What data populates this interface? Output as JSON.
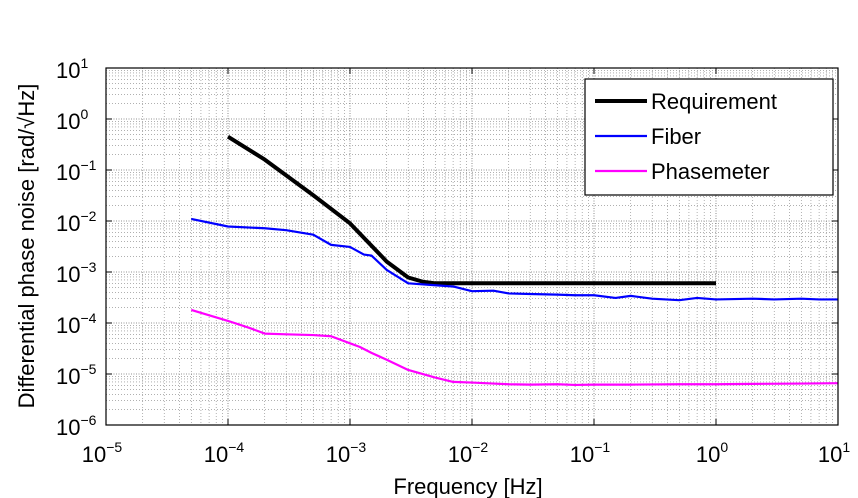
{
  "chart_data": {
    "type": "line",
    "title": "",
    "xlabel": "Frequency  [Hz]",
    "ylabel": "Differential phase noise [rad/√Hz]",
    "x_scale": "log",
    "y_scale": "log",
    "xlim": [
      1e-05,
      10
    ],
    "ylim": [
      1e-06,
      10
    ],
    "x_ticks": [
      {
        "base": "10",
        "exp": "−5",
        "value": 1e-05
      },
      {
        "base": "10",
        "exp": "−4",
        "value": 0.0001
      },
      {
        "base": "10",
        "exp": "−3",
        "value": 0.001
      },
      {
        "base": "10",
        "exp": "−2",
        "value": 0.01
      },
      {
        "base": "10",
        "exp": "−1",
        "value": 0.1
      },
      {
        "base": "10",
        "exp": "0",
        "value": 1
      },
      {
        "base": "10",
        "exp": "1",
        "value": 10
      }
    ],
    "y_ticks": [
      {
        "base": "10",
        "exp": "−6",
        "value": 1e-06
      },
      {
        "base": "10",
        "exp": "−5",
        "value": 1e-05
      },
      {
        "base": "10",
        "exp": "−4",
        "value": 0.0001
      },
      {
        "base": "10",
        "exp": "−3",
        "value": 0.001
      },
      {
        "base": "10",
        "exp": "−2",
        "value": 0.01
      },
      {
        "base": "10",
        "exp": "−1",
        "value": 0.1
      },
      {
        "base": "10",
        "exp": "0",
        "value": 1
      },
      {
        "base": "10",
        "exp": "1",
        "value": 10
      }
    ],
    "grid": true,
    "minor_grid": true,
    "legend_position": "top-right",
    "series": [
      {
        "name": "Requirement",
        "color": "#000000",
        "line_width": "thick",
        "x": [
          0.0001,
          0.0002,
          0.0005,
          0.001,
          0.002,
          0.003,
          0.004,
          0.005,
          0.007,
          0.01,
          0.1,
          1
        ],
        "y": [
          0.45,
          0.16,
          0.032,
          0.009,
          0.0016,
          0.00078,
          0.00064,
          0.0006,
          0.0006,
          0.0006,
          0.0006,
          0.0006
        ]
      },
      {
        "name": "Fiber",
        "color": "#0000ff",
        "line_width": "normal",
        "x": [
          5e-05,
          0.0001,
          0.0002,
          0.0003,
          0.0005,
          0.0007,
          0.001,
          0.0013,
          0.0015,
          0.002,
          0.003,
          0.005,
          0.007,
          0.01,
          0.015,
          0.02,
          0.03,
          0.05,
          0.07,
          0.1,
          0.15,
          0.2,
          0.3,
          0.5,
          0.7,
          1,
          2,
          3,
          5,
          7,
          10
        ],
        "y": [
          0.011,
          0.0078,
          0.0072,
          0.0066,
          0.0054,
          0.0034,
          0.0031,
          0.0022,
          0.0021,
          0.0011,
          0.0006,
          0.00055,
          0.00052,
          0.00042,
          0.00043,
          0.00038,
          0.00037,
          0.00036,
          0.00035,
          0.00035,
          0.00031,
          0.00034,
          0.0003,
          0.00028,
          0.00031,
          0.00029,
          0.0003,
          0.00029,
          0.0003,
          0.00029,
          0.00029
        ]
      },
      {
        "name": "Phasemeter",
        "color": "#ff00ff",
        "line_width": "normal",
        "x": [
          5e-05,
          0.0001,
          0.00015,
          0.0002,
          0.0003,
          0.0005,
          0.0007,
          0.001,
          0.0012,
          0.0015,
          0.002,
          0.003,
          0.005,
          0.007,
          0.01,
          0.015,
          0.02,
          0.03,
          0.05,
          0.07,
          0.1,
          0.2,
          0.5,
          1,
          2,
          5,
          10
        ],
        "y": [
          0.00018,
          0.00011,
          8e-05,
          6.2e-05,
          6e-05,
          5.8e-05,
          5.5e-05,
          4e-05,
          3.4e-05,
          2.6e-05,
          1.9e-05,
          1.2e-05,
          8.5e-06,
          7e-06,
          6.8e-06,
          6.5e-06,
          6.3e-06,
          6.2e-06,
          6.3e-06,
          6.1e-06,
          6.2e-06,
          6.2e-06,
          6.3e-06,
          6.3e-06,
          6.4e-06,
          6.5e-06,
          6.6e-06
        ]
      }
    ]
  }
}
